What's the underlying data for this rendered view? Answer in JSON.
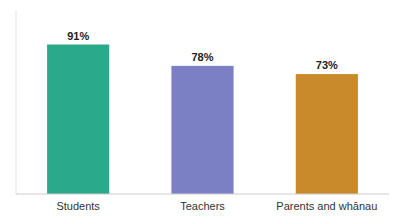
{
  "chart_data": {
    "type": "bar",
    "categories": [
      "Students",
      "Teachers",
      "Parents and whānau"
    ],
    "values": [
      91,
      78,
      73
    ],
    "value_labels": [
      "91%",
      "78%",
      "73%"
    ],
    "colors": [
      "#2aaa8a",
      "#7b7fc4",
      "#c98a2a"
    ],
    "ylim": [
      0,
      112
    ],
    "data_labels": true,
    "tick_labels": "x",
    "grid": false
  }
}
